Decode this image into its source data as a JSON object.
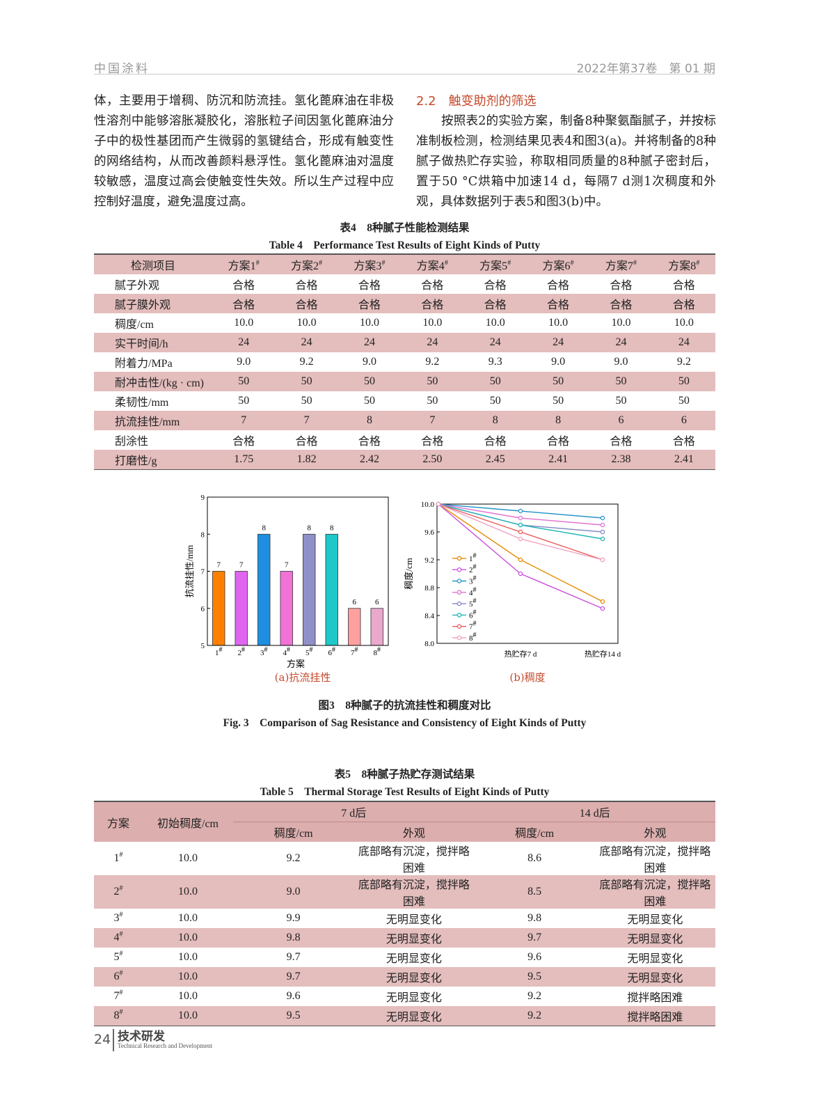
{
  "header": {
    "journal": "中国涂料",
    "issue": "2022年第37卷　第 01 期"
  },
  "body": {
    "left_paragraph": "体，主要用于增稠、防沉和防流挂。氢化蓖麻油在非极性溶剂中能够溶胀凝胶化，溶胀粒子间因氢化蓖麻油分子中的极性基团而产生微弱的氢键结合，形成有触变性的网络结构，从而改善颜料悬浮性。氢化蓖麻油对温度较敏感，温度过高会使触变性失效。所以生产过程中应控制好温度，避免温度过高。",
    "section_title": "2.2　触变助剂的筛选",
    "right_paragraph": "按照表2的实验方案，制备8种聚氨酯腻子，并按标准制板检测，检测结果见表4和图3(a)。并将制备的8种腻子做热贮存实验，称取相同质量的8种腻子密封后，置于50 °C烘箱中加速14 d，每隔7 d测1次稠度和外观，具体数据列于表5和图3(b)中。"
  },
  "table4": {
    "caption_cn": "表4　8种腻子性能检测结果",
    "caption_en": "Table 4　Performance Test Results of Eight Kinds of Putty",
    "header": [
      "检测项目",
      "方案1#",
      "方案2#",
      "方案3#",
      "方案4#",
      "方案5#",
      "方案6#",
      "方案7#",
      "方案8#"
    ],
    "rows": [
      [
        "腻子外观",
        "合格",
        "合格",
        "合格",
        "合格",
        "合格",
        "合格",
        "合格",
        "合格"
      ],
      [
        "腻子膜外观",
        "合格",
        "合格",
        "合格",
        "合格",
        "合格",
        "合格",
        "合格",
        "合格"
      ],
      [
        "稠度/cm",
        "10.0",
        "10.0",
        "10.0",
        "10.0",
        "10.0",
        "10.0",
        "10.0",
        "10.0"
      ],
      [
        "实干时间/h",
        "24",
        "24",
        "24",
        "24",
        "24",
        "24",
        "24",
        "24"
      ],
      [
        "附着力/MPa",
        "9.0",
        "9.2",
        "9.0",
        "9.2",
        "9.3",
        "9.0",
        "9.0",
        "9.2"
      ],
      [
        "耐冲击性/(kg · cm)",
        "50",
        "50",
        "50",
        "50",
        "50",
        "50",
        "50",
        "50"
      ],
      [
        "柔韧性/mm",
        "50",
        "50",
        "50",
        "50",
        "50",
        "50",
        "50",
        "50"
      ],
      [
        "抗流挂性/mm",
        "7",
        "7",
        "8",
        "7",
        "8",
        "8",
        "6",
        "6"
      ],
      [
        "刮涂性",
        "合格",
        "合格",
        "合格",
        "合格",
        "合格",
        "合格",
        "合格",
        "合格"
      ],
      [
        "打磨性/g",
        "1.75",
        "1.82",
        "2.42",
        "2.50",
        "2.45",
        "2.41",
        "2.38",
        "2.41"
      ]
    ]
  },
  "chart_data": [
    {
      "type": "bar",
      "x_label": "方案",
      "y_label": "抗流挂性/mm",
      "categories": [
        "1#",
        "2#",
        "3#",
        "4#",
        "5#",
        "6#",
        "7#",
        "8#"
      ],
      "values": [
        7,
        7,
        8,
        7,
        8,
        8,
        6,
        6
      ],
      "colors": [
        "#ff8000",
        "#e066f0",
        "#1e8fe0",
        "#f272d8",
        "#9090c8",
        "#1ec8c8",
        "#ffa0a0",
        "#eaa8cc"
      ],
      "ylim": [
        5,
        9
      ],
      "yticks": [
        5,
        6,
        7,
        8,
        9
      ]
    },
    {
      "type": "line",
      "y_label": "稠度/cm",
      "categories": [
        null,
        "热贮存7 d",
        "热贮存14 d"
      ],
      "series": [
        {
          "name": "1#",
          "color": "#e68a00",
          "values": [
            10.0,
            9.2,
            8.6
          ]
        },
        {
          "name": "2#",
          "color": "#c94fdc",
          "values": [
            10.0,
            9.0,
            8.5
          ]
        },
        {
          "name": "3#",
          "color": "#2293c8",
          "values": [
            10.0,
            9.9,
            9.8
          ]
        },
        {
          "name": "4#",
          "color": "#e070d0",
          "values": [
            10.0,
            9.8,
            9.7
          ]
        },
        {
          "name": "5#",
          "color": "#8585c5",
          "values": [
            10.0,
            9.7,
            9.6
          ]
        },
        {
          "name": "6#",
          "color": "#1eb5b5",
          "values": [
            10.0,
            9.7,
            9.5
          ]
        },
        {
          "name": "7#",
          "color": "#ea5a5a",
          "values": [
            10.0,
            9.6,
            9.2
          ]
        },
        {
          "name": "8#",
          "color": "#f0a0c0",
          "values": [
            10.0,
            9.5,
            9.2
          ]
        }
      ],
      "ylim": [
        8.0,
        10.0
      ],
      "yticks": [
        {
          "value": 8.0,
          "label": "8.0"
        },
        8.4,
        8.8,
        9.2,
        9.6,
        {
          "value": 10.0,
          "label": "10.0"
        }
      ],
      "legend": "lower left"
    }
  ],
  "figure": {
    "subcaptions": [
      "(a)抗流挂性",
      "(b)稠度"
    ],
    "caption_cn": "图3　8种腻子的抗流挂性和稠度对比",
    "caption_en": "Fig. 3　Comparison of Sag Resistance and Consistency of Eight Kinds of Putty"
  },
  "table5": {
    "caption_cn": "表5　8种腻子热贮存测试结果",
    "caption_en": "Table 5　Thermal Storage Test Results of Eight Kinds of Putty",
    "header_groups": [
      "方案",
      "初始稠度/cm",
      "7 d后",
      "14 d后"
    ],
    "subheader": [
      "稠度/cm",
      "外观",
      "稠度/cm",
      "外观"
    ],
    "rows": [
      [
        "1#",
        "10.0",
        "9.2",
        "底部略有沉淀，搅拌略困难",
        "8.6",
        "底部略有沉淀，搅拌略困难"
      ],
      [
        "2#",
        "10.0",
        "9.0",
        "底部略有沉淀，搅拌略困难",
        "8.5",
        "底部略有沉淀，搅拌略困难"
      ],
      [
        "3#",
        "10.0",
        "9.9",
        "无明显变化",
        "9.8",
        "无明显变化"
      ],
      [
        "4#",
        "10.0",
        "9.8",
        "无明显变化",
        "9.7",
        "无明显变化"
      ],
      [
        "5#",
        "10.0",
        "9.7",
        "无明显变化",
        "9.6",
        "无明显变化"
      ],
      [
        "6#",
        "10.0",
        "9.7",
        "无明显变化",
        "9.5",
        "无明显变化"
      ],
      [
        "7#",
        "10.0",
        "9.6",
        "无明显变化",
        "9.2",
        "搅拌略困难"
      ],
      [
        "8#",
        "10.0",
        "9.5",
        "无明显变化",
        "9.2",
        "搅拌略困难"
      ]
    ]
  },
  "footer": {
    "page": "24",
    "section": "技术研发",
    "section_en": "Technical Research and Development"
  }
}
